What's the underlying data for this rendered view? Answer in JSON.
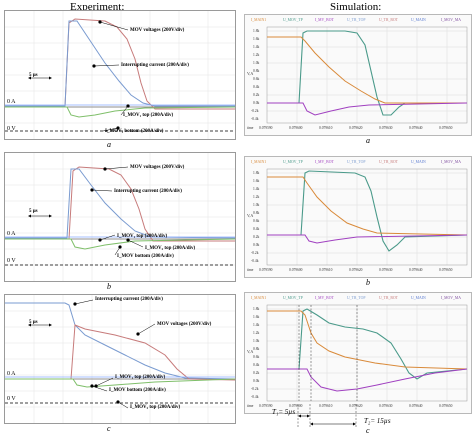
{
  "headers": {
    "experiment": "Experiment:",
    "simulation": "Simulation:"
  },
  "experiment_panels": [
    {
      "caption": "a",
      "annotations": {
        "mov_voltages": "MOV voltages (200V/div)",
        "interrupting_current": "Interrupting current (200A/div)",
        "mov_top": "I_MOV₁ top (200A/div)",
        "mov_bottom": "I_MOV₁ bottom (200A/div)"
      },
      "scale": "5 µs",
      "zero_a": "0 A",
      "zero_v": "0 V"
    },
    {
      "caption": "b",
      "annotations": {
        "mov_voltages": "MOV voltages (200V/div)",
        "interrupting_current": "Interrupting current (200A/div)",
        "mov1_top": "I_MOV₁ top (200A/div)",
        "mov2_top": "I_MOV₂ top (200A/div)",
        "mov_bottom": "I_MOV bottom (200A/div)"
      },
      "scale": "5 µs",
      "zero_a": "0 A",
      "zero_v": "0 V"
    },
    {
      "caption": "c",
      "annotations": {
        "interrupting_current": "Interrupting current (200A/div)",
        "mov_voltages": "MOV voltages (200V/div)",
        "mov1_top": "I_MOV₁ top (200A/div)",
        "mov_bottom": "I_MOV bottom (200A/div)",
        "mov2_top": "I_MOV₂ top (200A/div)"
      },
      "scale": "5 µs",
      "zero_a": "0 A",
      "zero_v": "0 V"
    }
  ],
  "simulation_panels": [
    {
      "caption": "a",
      "legend": [
        "I_MAIN1",
        "U_MOV_TP",
        "I_MV_BOT",
        "U_TR_TOP",
        "U_TR_BOT",
        "U_MAIN",
        "I_MOV_MA"
      ],
      "yticks": [
        "1.8k",
        "1.6k",
        "1.4k",
        "1.2k",
        "1.0k",
        "0.8k",
        "0.6k",
        "0.4k",
        "0.2k",
        "0.0k",
        "-0.2k",
        "-0.4k"
      ],
      "xticks": [
        "0.079590",
        "0.079600",
        "0.079610",
        "0.079620",
        "0.079630",
        "0.079640",
        "0.079650"
      ],
      "ylabel": "V,A",
      "xlabel": "time"
    },
    {
      "caption": "b",
      "legend": [
        "I_MAIN1",
        "U_MOV_TP",
        "I_MV_BOT",
        "U_TR_TOP",
        "U_TR_BOT",
        "U_MAIN",
        "I_MOV_MA"
      ],
      "yticks": [
        "1.8k",
        "1.6k",
        "1.4k",
        "1.2k",
        "1.0k",
        "0.8k",
        "0.6k",
        "0.4k",
        "0.2k",
        "0.0k",
        "-0.2k",
        "-0.4k"
      ],
      "xticks": [
        "0.079590",
        "0.079600",
        "0.079610",
        "0.079620",
        "0.079630",
        "0.079640",
        "0.079650"
      ],
      "ylabel": "V,A",
      "xlabel": "time"
    },
    {
      "caption": "c",
      "legend": [
        "I_MAIN1",
        "U_MOV_TP",
        "I_MV_BOT",
        "U_TR_TOP",
        "U_TR_BOT",
        "U_MAIN",
        "I_MOV_MA"
      ],
      "yticks": [
        "1.8k",
        "1.6k",
        "1.4k",
        "1.2k",
        "1.0k",
        "0.8k",
        "0.6k",
        "0.4k",
        "0.2k",
        "0.0k",
        "-0.2k",
        "-0.4k"
      ],
      "xticks": [
        "0.079590",
        "0.079600",
        "0.079610",
        "0.079620",
        "0.079630",
        "0.079640",
        "0.079650"
      ],
      "ylabel": "V,A",
      "xlabel": "time",
      "t1": "T₁= 5µs",
      "t2": "T₂= 15µs"
    }
  ],
  "colors": {
    "mov_voltage": "#c77b7b",
    "interrupting_current": "#7a9bd0",
    "mov_top": "#7fbf6a",
    "sim_voltage": "#4a9a8a",
    "sim_current": "#d98a3a",
    "sim_neg": "#a040c0"
  }
}
